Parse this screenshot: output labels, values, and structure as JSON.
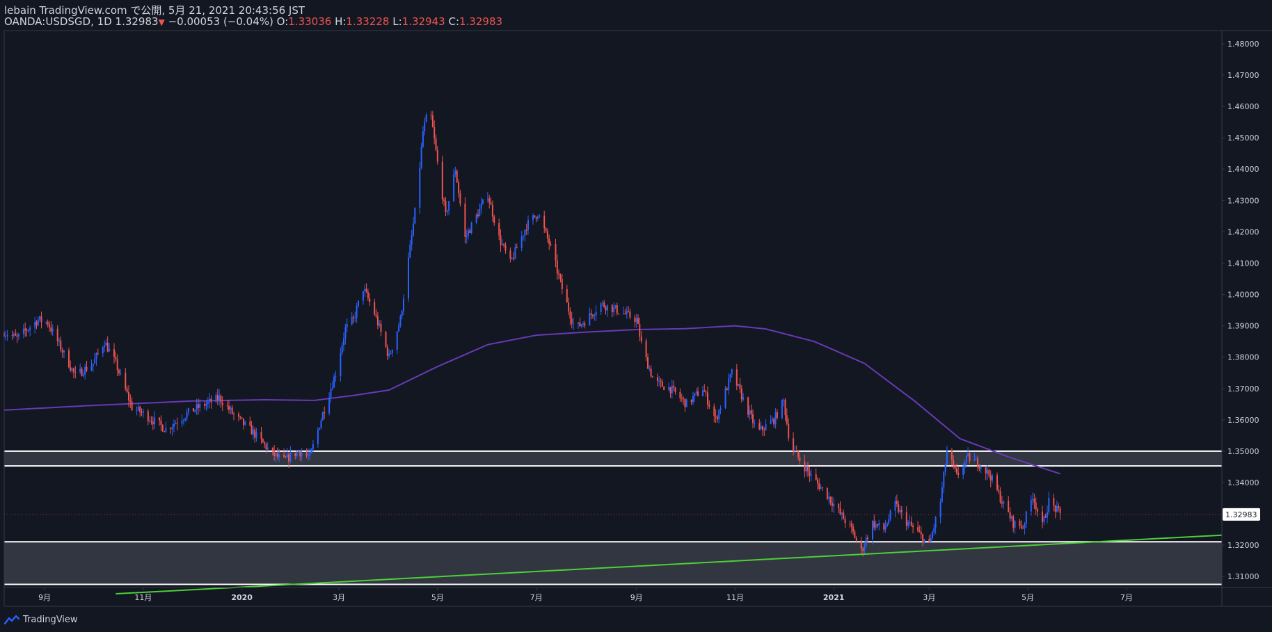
{
  "header": {
    "line1": "lebain TradingView.com で公開, 5月 21, 2021 20:43:56 JST",
    "symbol": "OANDA:USDSGD, 1D",
    "last": "1.32983",
    "change_arrow": "▼",
    "change": "−0.00053 (−0.04%)",
    "o_label": "O:",
    "o_value": "1.33036",
    "h_label": "H:",
    "h_value": "1.33228",
    "l_label": "L:",
    "l_value": "1.32943",
    "c_label": "C:",
    "c_value": "1.32983"
  },
  "footer": {
    "brand": "TradingView",
    "logo_icon": "tradingview-logo-icon"
  },
  "colors": {
    "background": "#131722",
    "up": "#2962ff",
    "down": "#ef5350",
    "ma": "#673ab7",
    "trendline": "#4cd137",
    "zone_fill": "#363a45",
    "zone_line": "#ffffff",
    "axis_text": "#d1d4dc",
    "border": "#363a45"
  },
  "chart_data": {
    "type": "candlestick",
    "symbol": "OANDA:USDSGD",
    "interval": "1D",
    "ylim": [
      1.3065,
      1.4842
    ],
    "y_ticks": [
      "1.48000",
      "1.47000",
      "1.46000",
      "1.45000",
      "1.44000",
      "1.43000",
      "1.42000",
      "1.41000",
      "1.40000",
      "1.39000",
      "1.38000",
      "1.37000",
      "1.36000",
      "1.35000",
      "1.34000",
      "1.32000",
      "1.31000"
    ],
    "y_tick_values": [
      1.48,
      1.47,
      1.46,
      1.45,
      1.44,
      1.43,
      1.42,
      1.41,
      1.4,
      1.39,
      1.38,
      1.37,
      1.36,
      1.35,
      1.34,
      1.32,
      1.31
    ],
    "x_ticks": [
      {
        "label": "9月",
        "date": "2019-09-01"
      },
      {
        "label": "11月",
        "date": "2019-11-01"
      },
      {
        "label": "2020",
        "date": "2020-01-01"
      },
      {
        "label": "3月",
        "date": "2020-03-01"
      },
      {
        "label": "5月",
        "date": "2020-05-01"
      },
      {
        "label": "7月",
        "date": "2020-07-01"
      },
      {
        "label": "9月",
        "date": "2020-09-01"
      },
      {
        "label": "11月",
        "date": "2020-11-01"
      },
      {
        "label": "2021",
        "date": "2021-01-01"
      },
      {
        "label": "3月",
        "date": "2021-03-01"
      },
      {
        "label": "5月",
        "date": "2021-05-01"
      },
      {
        "label": "7月",
        "date": "2021-07-01"
      }
    ],
    "x_range": [
      "2019-08-07",
      "2021-08-29"
    ],
    "last_price": 1.32983,
    "last_price_label": "1.32983",
    "price_path": [
      [
        "2019-08-07",
        1.388
      ],
      [
        "2019-08-15",
        1.386
      ],
      [
        "2019-08-28",
        1.392
      ],
      [
        "2019-09-03",
        1.391
      ],
      [
        "2019-09-12",
        1.382
      ],
      [
        "2019-09-20",
        1.374
      ],
      [
        "2019-10-01",
        1.378
      ],
      [
        "2019-10-08",
        1.385
      ],
      [
        "2019-10-15",
        1.378
      ],
      [
        "2019-10-25",
        1.364
      ],
      [
        "2019-11-01",
        1.362
      ],
      [
        "2019-11-15",
        1.357
      ],
      [
        "2019-12-01",
        1.363
      ],
      [
        "2019-12-18",
        1.367
      ],
      [
        "2019-12-28",
        1.361
      ],
      [
        "2020-01-08",
        1.356
      ],
      [
        "2020-01-20",
        1.349
      ],
      [
        "2020-01-27",
        1.347
      ],
      [
        "2020-02-05",
        1.35
      ],
      [
        "2020-02-12",
        1.348
      ],
      [
        "2020-02-20",
        1.362
      ],
      [
        "2020-02-28",
        1.375
      ],
      [
        "2020-03-05",
        1.389
      ],
      [
        "2020-03-10",
        1.392
      ],
      [
        "2020-03-16",
        1.402
      ],
      [
        "2020-03-23",
        1.394
      ],
      [
        "2020-04-01",
        1.38
      ],
      [
        "2020-04-08",
        1.392
      ],
      [
        "2020-04-13",
        1.411
      ],
      [
        "2020-04-18",
        1.43
      ],
      [
        "2020-04-22",
        1.452
      ],
      [
        "2020-04-26",
        1.46
      ],
      [
        "2020-05-01",
        1.442
      ],
      [
        "2020-05-06",
        1.425
      ],
      [
        "2020-05-12",
        1.44
      ],
      [
        "2020-05-18",
        1.418
      ],
      [
        "2020-05-25",
        1.425
      ],
      [
        "2020-06-01",
        1.432
      ],
      [
        "2020-06-08",
        1.418
      ],
      [
        "2020-06-15",
        1.41
      ],
      [
        "2020-06-25",
        1.422
      ],
      [
        "2020-07-02",
        1.426
      ],
      [
        "2020-07-10",
        1.415
      ],
      [
        "2020-07-18",
        1.4
      ],
      [
        "2020-07-25",
        1.389
      ],
      [
        "2020-08-01",
        1.392
      ],
      [
        "2020-08-10",
        1.397
      ],
      [
        "2020-08-20",
        1.395
      ],
      [
        "2020-09-01",
        1.392
      ],
      [
        "2020-09-05",
        1.382
      ],
      [
        "2020-09-12",
        1.372
      ],
      [
        "2020-09-22",
        1.37
      ],
      [
        "2020-10-02",
        1.365
      ],
      [
        "2020-10-12",
        1.37
      ],
      [
        "2020-10-20",
        1.36
      ],
      [
        "2020-10-30",
        1.375
      ],
      [
        "2020-11-08",
        1.364
      ],
      [
        "2020-11-15",
        1.356
      ],
      [
        "2020-11-25",
        1.36
      ],
      [
        "2020-12-01",
        1.366
      ],
      [
        "2020-12-05",
        1.352
      ],
      [
        "2020-12-10",
        1.348
      ],
      [
        "2020-12-18",
        1.342
      ],
      [
        "2020-12-28",
        1.336
      ],
      [
        "2021-01-05",
        1.33
      ],
      [
        "2021-01-12",
        1.325
      ],
      [
        "2021-01-18",
        1.318
      ],
      [
        "2021-01-25",
        1.327
      ],
      [
        "2021-02-01",
        1.325
      ],
      [
        "2021-02-08",
        1.333
      ],
      [
        "2021-02-14",
        1.328
      ],
      [
        "2021-02-22",
        1.324
      ],
      [
        "2021-03-01",
        1.32
      ],
      [
        "2021-03-08",
        1.334
      ],
      [
        "2021-03-12",
        1.35
      ],
      [
        "2021-03-18",
        1.342
      ],
      [
        "2021-03-25",
        1.348
      ],
      [
        "2021-04-01",
        1.346
      ],
      [
        "2021-04-08",
        1.342
      ],
      [
        "2021-04-15",
        1.334
      ],
      [
        "2021-04-22",
        1.327
      ],
      [
        "2021-04-28",
        1.326
      ],
      [
        "2021-05-04",
        1.336
      ],
      [
        "2021-05-10",
        1.326
      ],
      [
        "2021-05-14",
        1.334
      ],
      [
        "2021-05-21",
        1.3298
      ]
    ],
    "moving_average": [
      [
        "2019-08-07",
        1.3631
      ],
      [
        "2019-10-01",
        1.3646
      ],
      [
        "2019-12-01",
        1.366
      ],
      [
        "2020-01-15",
        1.3664
      ],
      [
        "2020-02-15",
        1.3662
      ],
      [
        "2020-03-10",
        1.3678
      ],
      [
        "2020-04-01",
        1.3695
      ],
      [
        "2020-05-01",
        1.377
      ],
      [
        "2020-06-01",
        1.384
      ],
      [
        "2020-07-01",
        1.387
      ],
      [
        "2020-08-01",
        1.388
      ],
      [
        "2020-09-01",
        1.3888
      ],
      [
        "2020-10-01",
        1.3891
      ],
      [
        "2020-11-01",
        1.39
      ],
      [
        "2020-11-20",
        1.389
      ],
      [
        "2020-12-20",
        1.385
      ],
      [
        "2021-01-20",
        1.378
      ],
      [
        "2021-02-20",
        1.366
      ],
      [
        "2021-03-20",
        1.354
      ],
      [
        "2021-04-20",
        1.348
      ],
      [
        "2021-05-21",
        1.3428
      ]
    ],
    "trendline": {
      "p1": [
        "2019-10-15",
        1.3045
      ],
      "p2": [
        "2021-08-29",
        1.3232
      ]
    },
    "zones": [
      {
        "top": 1.35,
        "bottom": 1.3453
      },
      {
        "top": 1.3211,
        "bottom": 1.3075
      }
    ]
  }
}
